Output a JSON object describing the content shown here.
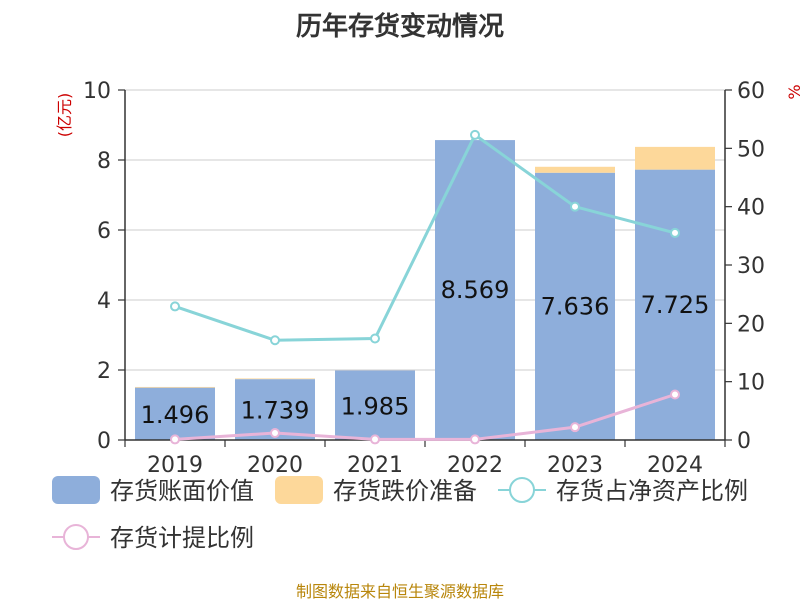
{
  "title": "历年存货变动情况",
  "source": "制图数据来自恒生聚源数据库",
  "chart_data": {
    "type": "bar",
    "categories": [
      "2019",
      "2020",
      "2021",
      "2022",
      "2023",
      "2024"
    ],
    "left_unit": "(亿元)",
    "right_unit": "%",
    "ylim_left": [
      0,
      10
    ],
    "ylim_right": [
      0,
      60
    ],
    "yticks_left": [
      "0",
      "2",
      "4",
      "6",
      "8",
      "10"
    ],
    "yticks_right": [
      "0",
      "10",
      "20",
      "30",
      "40",
      "50",
      "60"
    ],
    "grid": true,
    "legend_position": "bottom",
    "series": [
      {
        "name": "存货账面价值",
        "type": "bar",
        "axis": "left",
        "color": "#8eaedb",
        "values": [
          1.496,
          1.739,
          1.985,
          8.569,
          7.636,
          7.725
        ],
        "labels": [
          "1.496",
          "1.739",
          "1.985",
          "8.569",
          "7.636",
          "7.725"
        ]
      },
      {
        "name": "存货跌价准备",
        "type": "bar",
        "axis": "left",
        "stacked": true,
        "color": "#fdd89a",
        "values": [
          0.02,
          0.02,
          0.0,
          0.0,
          0.17,
          0.65
        ]
      },
      {
        "name": "存货占净资产比例",
        "type": "line",
        "axis": "right",
        "color": "#88d4d8",
        "values": [
          22.9,
          17.1,
          17.4,
          52.3,
          40.0,
          35.5
        ]
      },
      {
        "name": "存货计提比例",
        "type": "line",
        "axis": "right",
        "color": "#e8b4d8",
        "values": [
          0.1,
          1.2,
          0.1,
          0.1,
          2.2,
          7.8
        ]
      }
    ]
  }
}
